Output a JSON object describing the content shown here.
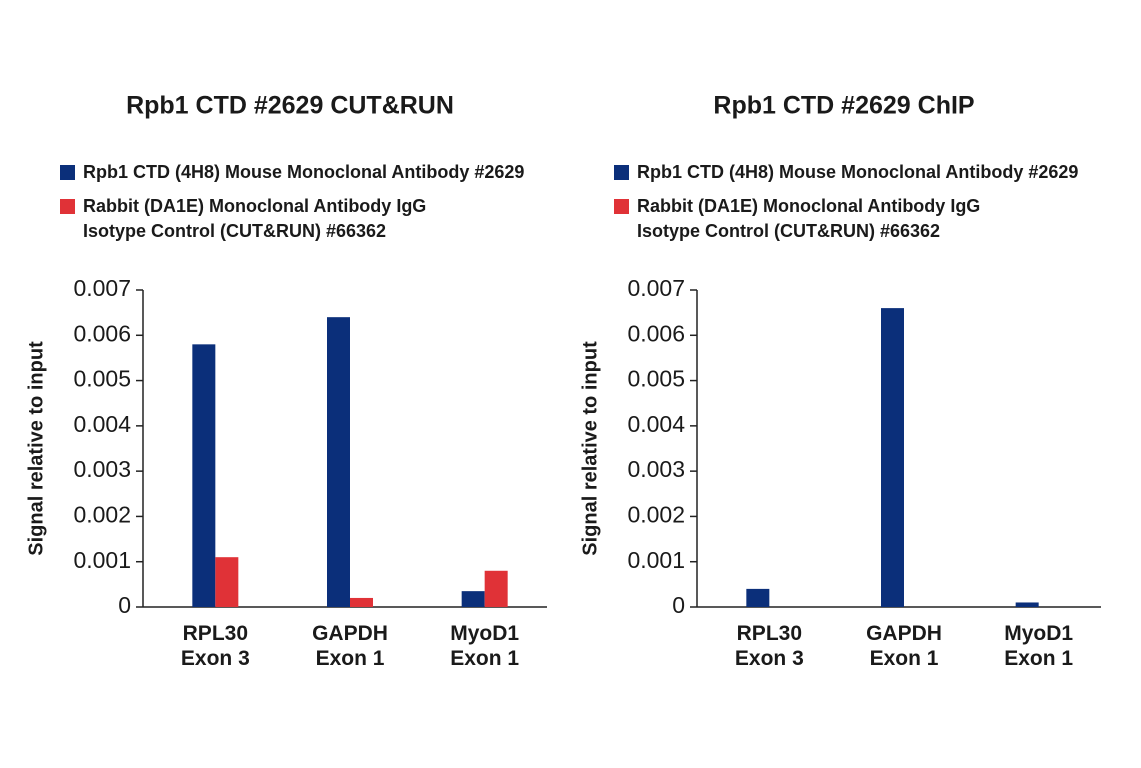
{
  "chart_data": [
    {
      "type": "bar",
      "title": "Rpb1 CTD #2629 CUT&RUN",
      "ylabel": "Signal relative to input",
      "categories": [
        "RPL30\nExon 3",
        "GAPDH\nExon 1",
        "MyoD1\nExon 1"
      ],
      "series": [
        {
          "name": "Rpb1 CTD (4H8) Mouse Monoclonal Antibody #2629",
          "color": "#0b2f7a",
          "values": [
            0.0058,
            0.0064,
            0.00035
          ]
        },
        {
          "name": "Rabbit (DA1E) Monoclonal Antibody IgG\nIsotype Control (CUT&RUN) #66362",
          "color": "#e03237",
          "values": [
            0.0011,
            0.0002,
            0.0008
          ]
        }
      ],
      "ylim": [
        0,
        0.007
      ],
      "yticks": [
        0,
        0.001,
        0.002,
        0.003,
        0.004,
        0.005,
        0.006,
        0.007
      ],
      "grid": false
    },
    {
      "type": "bar",
      "title": "Rpb1 CTD #2629 ChIP",
      "ylabel": "Signal relative to input",
      "categories": [
        "RPL30\nExon 3",
        "GAPDH\nExon 1",
        "MyoD1\nExon 1"
      ],
      "series": [
        {
          "name": "Rpb1 CTD (4H8) Mouse Monoclonal Antibody #2629",
          "color": "#0b2f7a",
          "values": [
            0.0004,
            0.0066,
            0.0001
          ]
        },
        {
          "name": "Rabbit (DA1E) Monoclonal Antibody IgG\nIsotype Control (CUT&RUN) #66362",
          "color": "#e03237",
          "values": [
            0,
            0,
            0
          ]
        }
      ],
      "ylim": [
        0,
        0.007
      ],
      "yticks": [
        0,
        0.001,
        0.002,
        0.003,
        0.004,
        0.005,
        0.006,
        0.007
      ],
      "grid": false
    }
  ]
}
